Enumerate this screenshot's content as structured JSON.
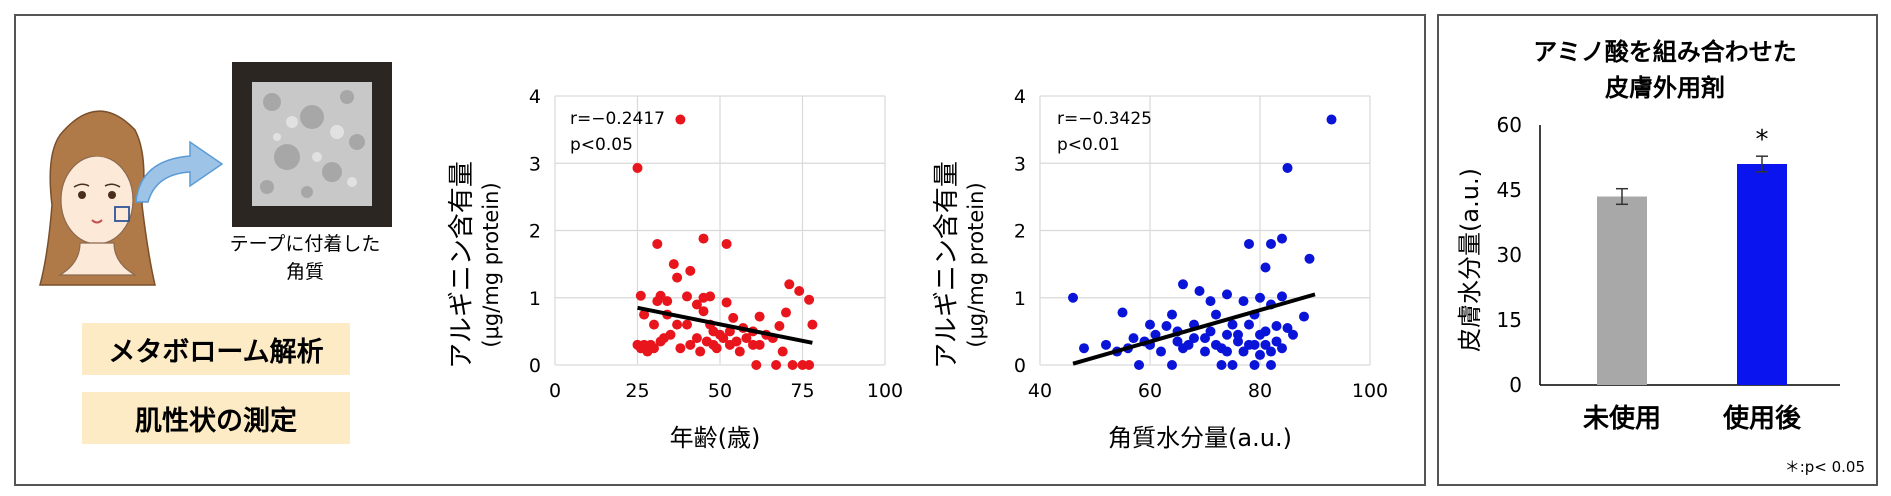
{
  "left_panel": {
    "tape_label_line1": "テープに付着した",
    "tape_label_line2": "角質",
    "tag_metabolome": "メタボローム解析",
    "tag_skin": "肌性状の測定"
  },
  "chart_data": [
    {
      "type": "scatter",
      "ylabel_line1": "アルギニン含有量",
      "ylabel_line2": "(μg/mg protein)",
      "xlabel": "年齢(歳)",
      "xlim": [
        0,
        100
      ],
      "ylim": [
        0,
        4
      ],
      "xticks": [
        "0",
        "25",
        "50",
        "75",
        "100"
      ],
      "yticks": [
        "0",
        "1",
        "2",
        "3",
        "4"
      ],
      "annotation_r": "r=−0.2417",
      "annotation_p": "p<0.05",
      "color": "#e8151c",
      "trendline": {
        "x": [
          25,
          78
        ],
        "y": [
          0.85,
          0.33
        ]
      },
      "points": [
        [
          25,
          2.93
        ],
        [
          38,
          3.65
        ],
        [
          45,
          1.88
        ],
        [
          31,
          1.8
        ],
        [
          52,
          1.8
        ],
        [
          36,
          1.5
        ],
        [
          37,
          1.3
        ],
        [
          41,
          1.4
        ],
        [
          26,
          1.03
        ],
        [
          32,
          1.03
        ],
        [
          40,
          1.02
        ],
        [
          45,
          1.0
        ],
        [
          47,
          1.02
        ],
        [
          71,
          1.2
        ],
        [
          74,
          1.1
        ],
        [
          77,
          0.97
        ],
        [
          31,
          0.95
        ],
        [
          34,
          0.95
        ],
        [
          43,
          0.9
        ],
        [
          52,
          0.93
        ],
        [
          27,
          0.75
        ],
        [
          34,
          0.75
        ],
        [
          45,
          0.8
        ],
        [
          54,
          0.7
        ],
        [
          62,
          0.72
        ],
        [
          70,
          0.78
        ],
        [
          78,
          0.6
        ],
        [
          30,
          0.6
        ],
        [
          37,
          0.6
        ],
        [
          40,
          0.6
        ],
        [
          47,
          0.6
        ],
        [
          57,
          0.55
        ],
        [
          68,
          0.58
        ],
        [
          25,
          0.3
        ],
        [
          26,
          0.25
        ],
        [
          27,
          0.3
        ],
        [
          28,
          0.2
        ],
        [
          29,
          0.3
        ],
        [
          30,
          0.25
        ],
        [
          32,
          0.35
        ],
        [
          33,
          0.4
        ],
        [
          35,
          0.45
        ],
        [
          38,
          0.25
        ],
        [
          41,
          0.3
        ],
        [
          43,
          0.4
        ],
        [
          44,
          0.2
        ],
        [
          46,
          0.35
        ],
        [
          48,
          0.3
        ],
        [
          49,
          0.25
        ],
        [
          50,
          0.45
        ],
        [
          51,
          0.4
        ],
        [
          53,
          0.3
        ],
        [
          55,
          0.35
        ],
        [
          56,
          0.2
        ],
        [
          58,
          0.4
        ],
        [
          60,
          0.5
        ],
        [
          61,
          0.0
        ],
        [
          62,
          0.3
        ],
        [
          64,
          0.45
        ],
        [
          66,
          0.4
        ],
        [
          67,
          0.0
        ],
        [
          69,
          0.2
        ],
        [
          72,
          0.0
        ],
        [
          75,
          0.0
        ],
        [
          77,
          0.0
        ],
        [
          60,
          0.3
        ],
        [
          53,
          0.5
        ],
        [
          48,
          0.5
        ]
      ]
    },
    {
      "type": "scatter",
      "ylabel_line1": "アルギニン含有量",
      "ylabel_line2": "(μg/mg protein)",
      "xlabel": "角質水分量(a.u.)",
      "xlim": [
        40,
        100
      ],
      "ylim": [
        0,
        4
      ],
      "xticks": [
        "40",
        "60",
        "80",
        "100"
      ],
      "yticks": [
        "0",
        "1",
        "2",
        "3",
        "4"
      ],
      "annotation_r": "r=−0.3425",
      "annotation_p": "p<0.01",
      "color": "#0a14d8",
      "trendline": {
        "x": [
          46,
          90
        ],
        "y": [
          0.02,
          1.05
        ]
      },
      "points": [
        [
          93,
          3.65
        ],
        [
          85,
          2.93
        ],
        [
          84,
          1.88
        ],
        [
          89,
          1.58
        ],
        [
          78,
          1.8
        ],
        [
          82,
          1.8
        ],
        [
          81,
          1.45
        ],
        [
          66,
          1.2
        ],
        [
          69,
          1.1
        ],
        [
          46,
          1.0
        ],
        [
          74,
          1.05
        ],
        [
          80,
          1.0
        ],
        [
          84,
          1.02
        ],
        [
          71,
          0.95
        ],
        [
          77,
          0.95
        ],
        [
          82,
          0.9
        ],
        [
          55,
          0.78
        ],
        [
          64,
          0.75
        ],
        [
          72,
          0.75
        ],
        [
          79,
          0.75
        ],
        [
          88,
          0.72
        ],
        [
          60,
          0.6
        ],
        [
          63,
          0.58
        ],
        [
          68,
          0.6
        ],
        [
          75,
          0.6
        ],
        [
          78,
          0.6
        ],
        [
          83,
          0.58
        ],
        [
          85,
          0.55
        ],
        [
          57,
          0.4
        ],
        [
          59,
          0.35
        ],
        [
          61,
          0.45
        ],
        [
          65,
          0.5
        ],
        [
          67,
          0.3
        ],
        [
          70,
          0.4
        ],
        [
          72,
          0.3
        ],
        [
          74,
          0.45
        ],
        [
          76,
          0.35
        ],
        [
          79,
          0.3
        ],
        [
          80,
          0.45
        ],
        [
          81,
          0.3
        ],
        [
          83,
          0.35
        ],
        [
          86,
          0.45
        ],
        [
          48,
          0.25
        ],
        [
          52,
          0.3
        ],
        [
          54,
          0.2
        ],
        [
          56,
          0.25
        ],
        [
          62,
          0.2
        ],
        [
          66,
          0.25
        ],
        [
          70,
          0.2
        ],
        [
          73,
          0.25
        ],
        [
          77,
          0.2
        ],
        [
          80,
          0.15
        ],
        [
          82,
          0.2
        ],
        [
          84,
          0.25
        ],
        [
          58,
          0.0
        ],
        [
          64,
          0.0
        ],
        [
          73,
          0.0
        ],
        [
          75,
          0.0
        ],
        [
          79,
          0.0
        ],
        [
          82,
          0.0
        ],
        [
          60,
          0.3
        ],
        [
          68,
          0.4
        ],
        [
          71,
          0.5
        ],
        [
          76,
          0.45
        ],
        [
          78,
          0.3
        ],
        [
          81,
          0.5
        ],
        [
          65,
          0.35
        ],
        [
          74,
          0.2
        ]
      ]
    },
    {
      "type": "bar",
      "title_line1": "アミノ酸を組み合わせた",
      "title_line2": "皮膚外用剤",
      "ylabel": "皮膚水分量(a.u.)",
      "ylim": [
        0,
        60
      ],
      "yticks": [
        "0",
        "15",
        "30",
        "45",
        "60"
      ],
      "categories": [
        "未使用",
        "使用後"
      ],
      "values": [
        43.5,
        51
      ],
      "errors": [
        1.8,
        1.8
      ],
      "colors": [
        "#a8a8a8",
        "#0a14ee"
      ],
      "significance": "*",
      "footnote": "＊:p< 0.05"
    }
  ]
}
